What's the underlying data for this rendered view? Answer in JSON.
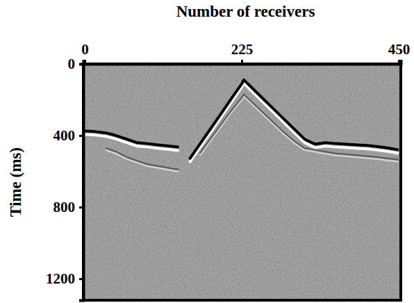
{
  "chart_data": {
    "type": "line",
    "x_label": "Number of receivers",
    "y_label": "Time (ms)",
    "x": [
      0,
      15,
      30,
      45,
      60,
      75,
      90,
      105,
      120,
      135,
      150,
      165,
      180,
      195,
      210,
      225,
      228,
      240,
      255,
      270,
      285,
      300,
      315,
      330,
      345,
      360,
      375,
      390,
      405,
      420,
      435,
      450
    ],
    "series": [
      {
        "color": "#000000",
        "values": [
          375,
          378,
          385,
          400,
          420,
          440,
          445,
          452,
          458,
          465,
          null,
          null,
          null,
          null,
          null,
          null,
          null,
          null,
          null,
          null,
          null,
          null,
          null,
          null,
          null,
          null,
          null,
          null,
          null,
          null,
          null,
          null
        ]
      },
      {
        "color": "#000000",
        "values": [
          null,
          null,
          null,
          null,
          null,
          null,
          null,
          null,
          null,
          null,
          532,
          448,
          364,
          280,
          195,
          111,
          89,
          135,
          192,
          249,
          306,
          363,
          420,
          448,
          440,
          445,
          448,
          452,
          455,
          462,
          470,
          480
        ]
      },
      {
        "color": "#3a3a3a",
        "values": [
          null,
          null,
          470,
          490,
          520,
          540,
          560,
          570,
          580,
          590,
          null,
          null,
          null,
          null,
          null,
          null,
          null,
          null,
          null,
          null,
          null,
          null,
          null,
          null,
          null,
          null,
          null,
          null,
          null,
          null,
          null,
          null
        ]
      },
      {
        "color": "#3a3a3a",
        "values": [
          null,
          null,
          null,
          null,
          null,
          null,
          null,
          null,
          null,
          null,
          null,
          500,
          420,
          340,
          262,
          190,
          170,
          215,
          270,
          325,
          380,
          430,
          470,
          480,
          490,
          500,
          505,
          510,
          515,
          520,
          528,
          535
        ]
      }
    ],
    "xlim": [
      -2,
      453
    ],
    "ylim": [
      0,
      1320
    ],
    "xticks": [
      0,
      225,
      450
    ],
    "yticks": [
      0,
      400,
      800,
      1200
    ]
  }
}
